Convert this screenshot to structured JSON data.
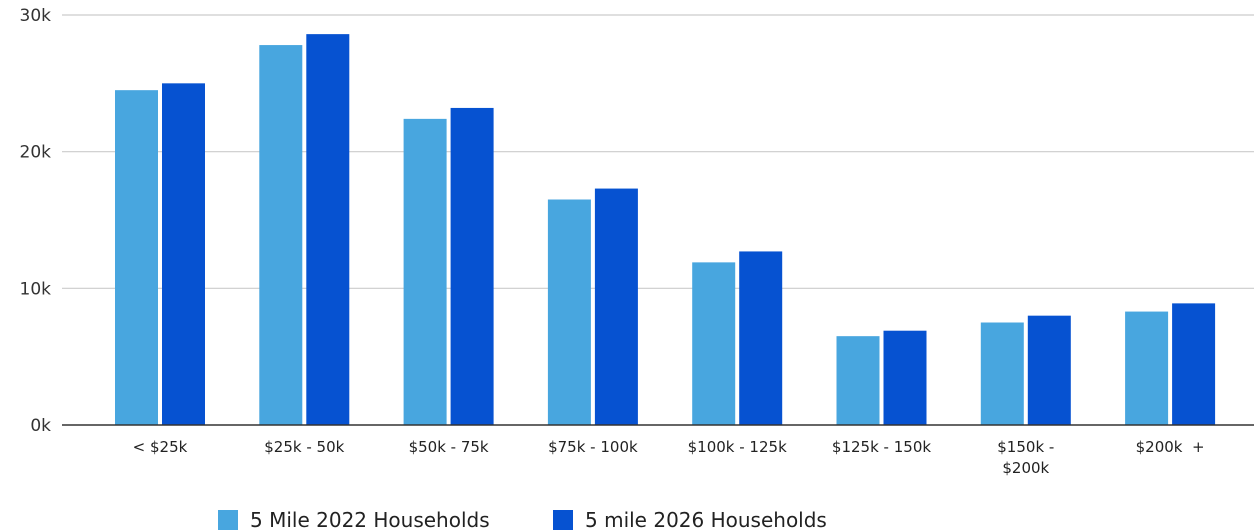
{
  "chart_data": {
    "type": "bar",
    "title": "",
    "xlabel": "",
    "ylabel": "",
    "ylim": [
      0,
      30000
    ],
    "yticks": [
      {
        "value": 0,
        "label": "0k"
      },
      {
        "value": 10000,
        "label": "10k"
      },
      {
        "value": 20000,
        "label": "20k"
      },
      {
        "value": 30000,
        "label": "30k"
      }
    ],
    "grid": true,
    "legend_position": "bottom",
    "categories": [
      [
        "< $25k"
      ],
      [
        "$25k - 50k"
      ],
      [
        "$50k - 75k"
      ],
      [
        "$75k - 100k"
      ],
      [
        "$100k - 125k"
      ],
      [
        "$125k - 150k"
      ],
      [
        "$150k -",
        "$200k"
      ],
      [
        "$200k  +"
      ]
    ],
    "series": [
      {
        "name": "5 Mile 2022 Households",
        "color": "#48A6DF",
        "values": [
          24500,
          27800,
          22400,
          16500,
          11900,
          6500,
          7500,
          8300
        ]
      },
      {
        "name": "5 mile 2026 Households",
        "color": "#0652D1",
        "values": [
          25000,
          28600,
          23200,
          17300,
          12700,
          6900,
          8000,
          8900
        ]
      }
    ]
  }
}
